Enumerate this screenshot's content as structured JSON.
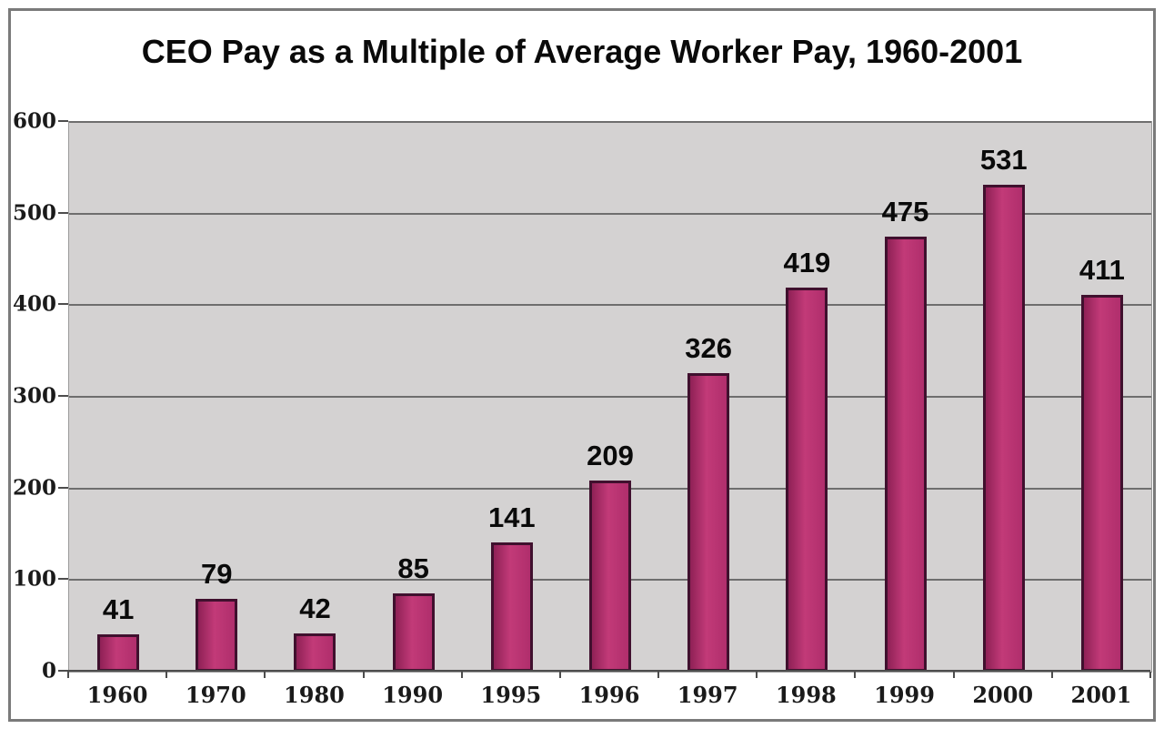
{
  "chart_data": {
    "type": "bar",
    "title": "CEO Pay as a Multiple of Average Worker Pay, 1960-2001",
    "categories": [
      "1960",
      "1970",
      "1980",
      "1990",
      "1995",
      "1996",
      "1997",
      "1998",
      "1999",
      "2000",
      "2001"
    ],
    "values": [
      41,
      79,
      42,
      85,
      141,
      209,
      326,
      419,
      475,
      531,
      411
    ],
    "xlabel": "",
    "ylabel": "",
    "ylim": [
      0,
      600
    ],
    "yticks": [
      0,
      100,
      200,
      300,
      400,
      500,
      600
    ],
    "grid": true,
    "legend": false,
    "data_labels": true,
    "colors": {
      "bar_fill": "#b02e6c",
      "bar_fill_light": "#c23a78",
      "bar_fill_dark": "#8f2156",
      "bar_border": "#40102e",
      "plot_background": "#d4d2d2",
      "gridline": "#6e6e6e",
      "axis_line": "#4d4d4d",
      "frame_border": "#7a7a7a",
      "text": "#0a0a0a"
    }
  }
}
